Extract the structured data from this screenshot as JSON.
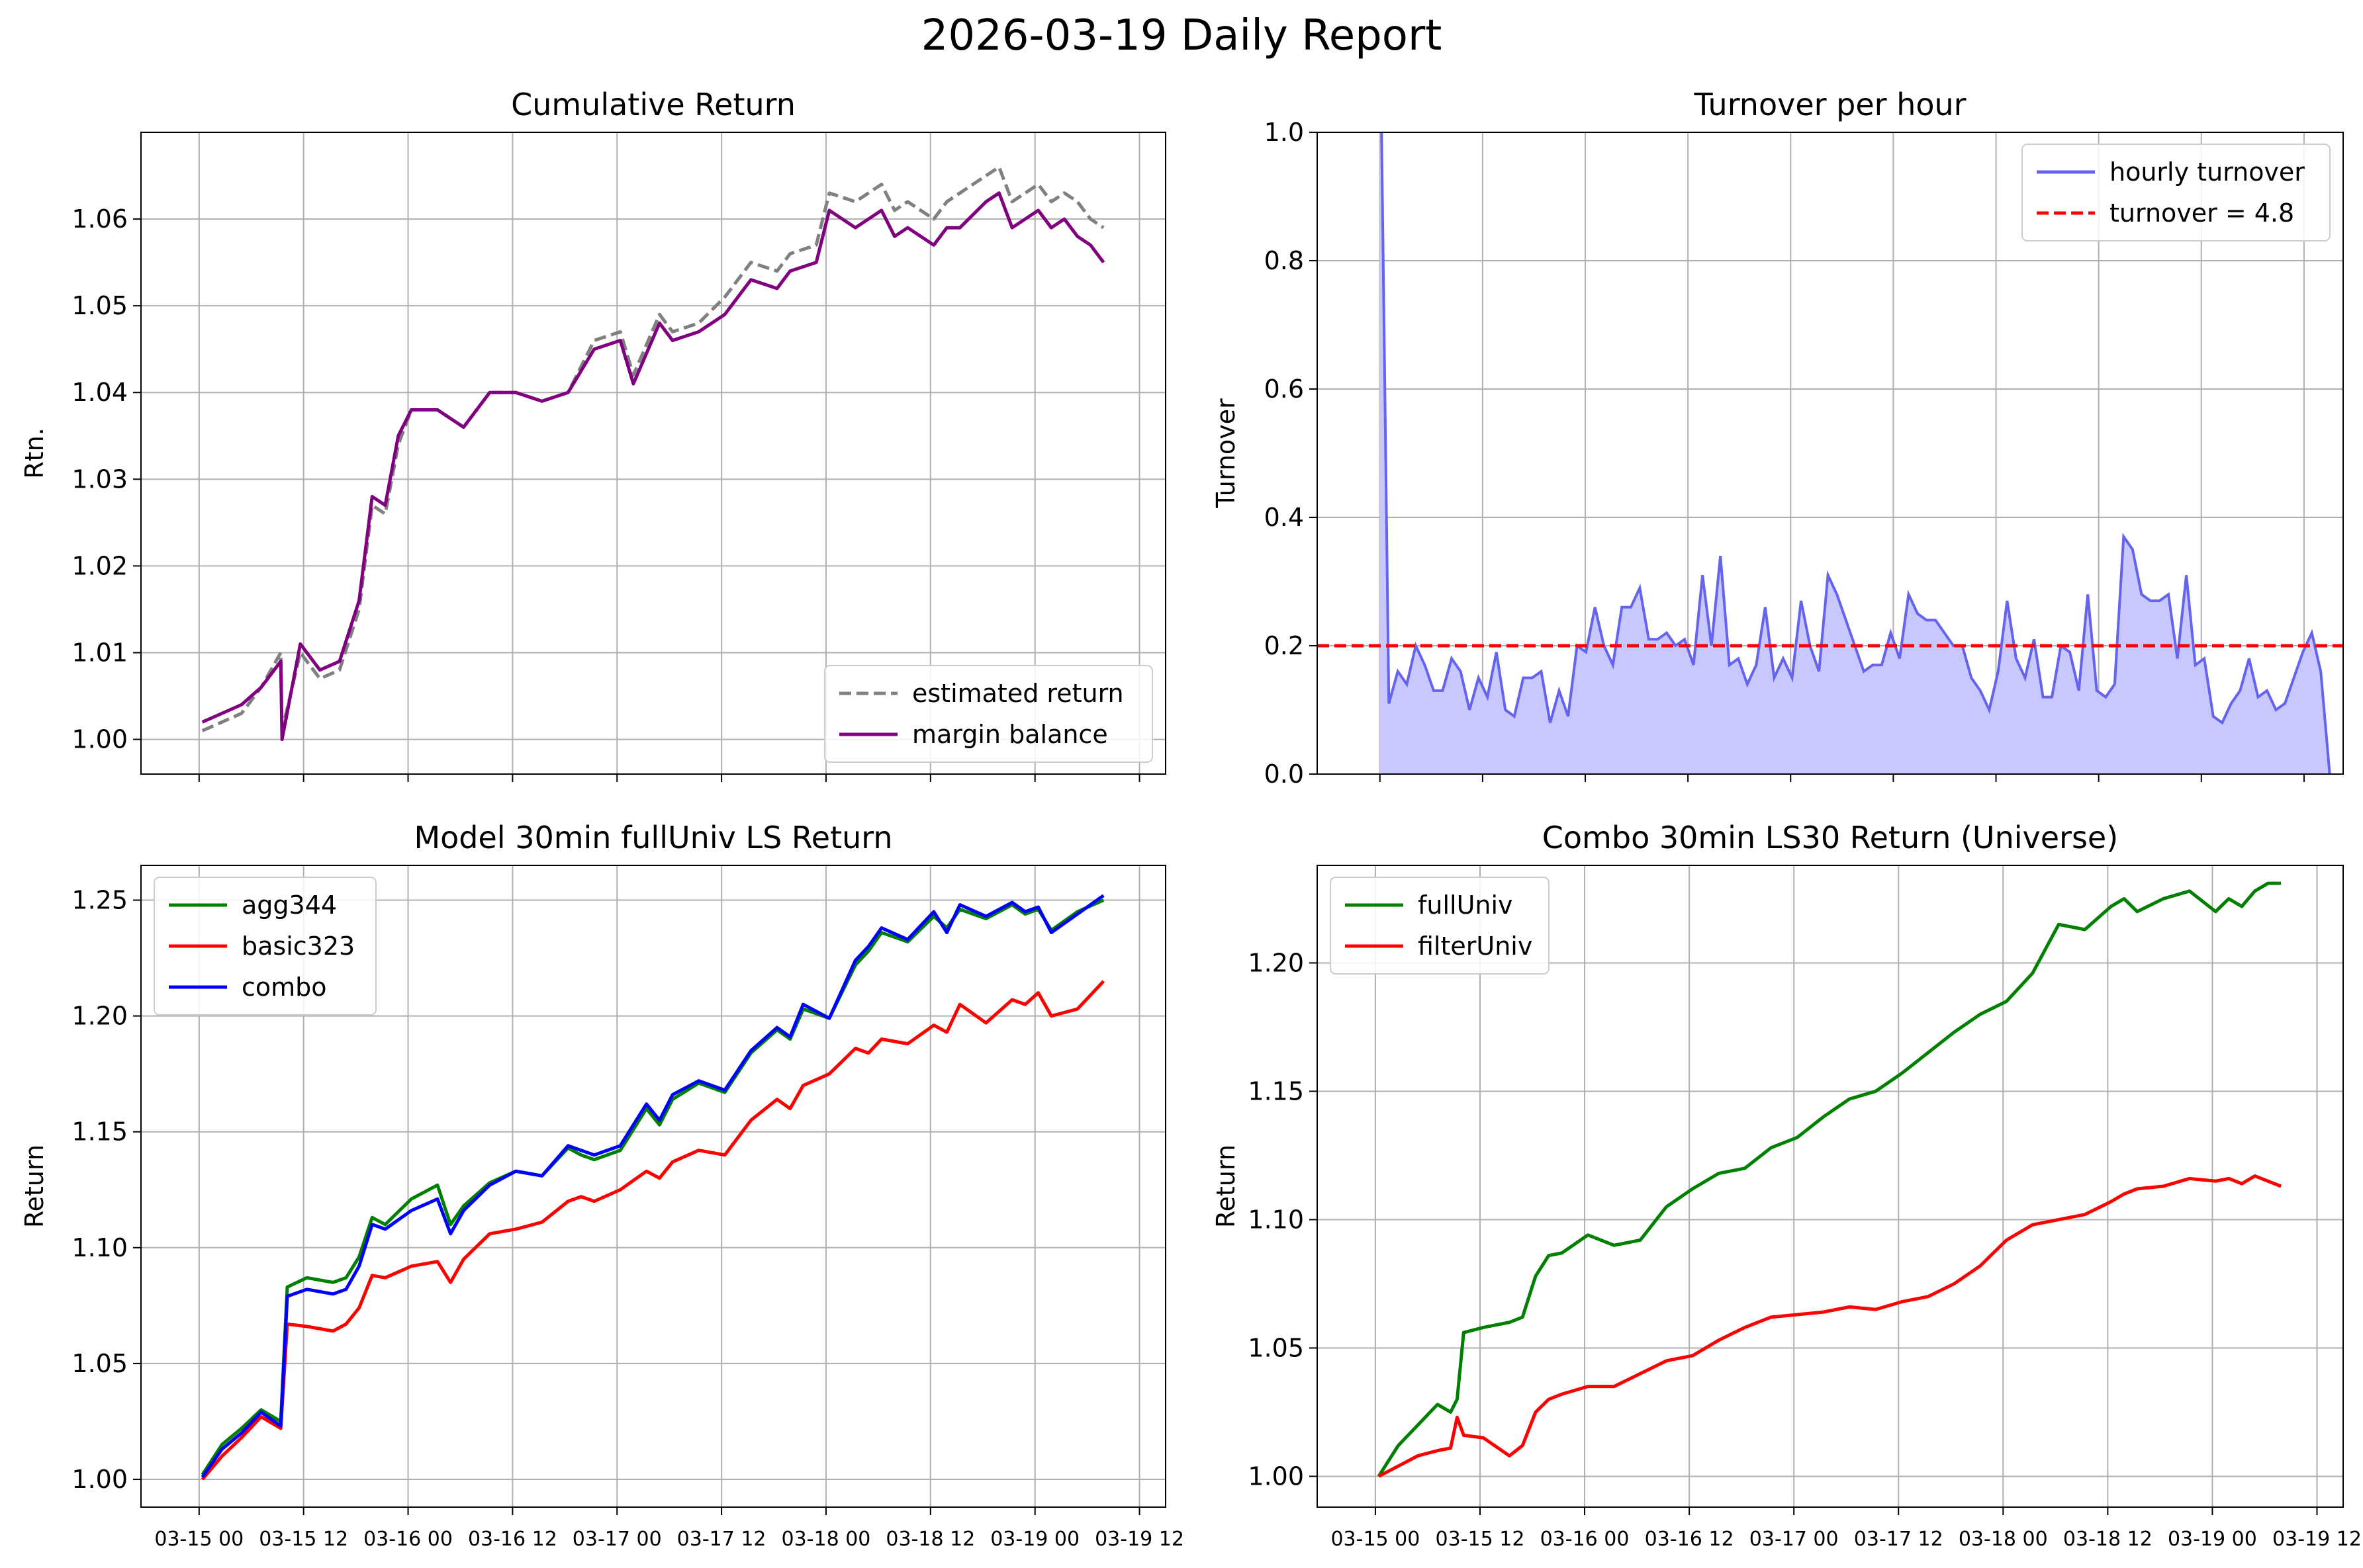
{
  "suptitle": "2026-03-19 Daily Report",
  "colors": {
    "estimated": "#808080",
    "margin": "#800080",
    "turnover_line": "#6464f0",
    "turnover_fill": "#c8c8ff",
    "turnover_ref": "#ff0000",
    "green": "#008000",
    "red": "#ff0000",
    "blue": "#0000ff"
  },
  "chart_data": [
    {
      "type": "line",
      "title": "Cumulative Return",
      "xlabel": "",
      "ylabel": "Rtn.",
      "ylim": [
        0.996,
        1.07
      ],
      "yticks": [
        "1.00",
        "1.01",
        "1.02",
        "1.03",
        "1.04",
        "1.05",
        "1.06"
      ],
      "xticks": [
        "03-15 00",
        "03-15 12",
        "03-16 00",
        "03-16 12",
        "03-17 00",
        "03-17 12",
        "03-18 00",
        "03-18 12",
        "03-19 00",
        "03-19 12"
      ],
      "xtick_labels_visible": false,
      "grid": true,
      "legend": "lower right",
      "x_hours": [
        0,
        3,
        6,
        9,
        12,
        12.2,
        15,
        18,
        21,
        24,
        26,
        28,
        30,
        32,
        36,
        40,
        44,
        48,
        52,
        56,
        60,
        64,
        66,
        70,
        72,
        76,
        80,
        84,
        88,
        90,
        94,
        96,
        100,
        104,
        106,
        108,
        112,
        114,
        116,
        120,
        122,
        124,
        126,
        128,
        130,
        132,
        134,
        136,
        138
      ],
      "series": [
        {
          "name": "estimated return",
          "style": "dashed",
          "values": [
            1.001,
            1.002,
            1.003,
            1.006,
            1.01,
            1.001,
            1.01,
            1.007,
            1.008,
            1.015,
            1.027,
            1.026,
            1.034,
            1.038,
            1.038,
            1.036,
            1.04,
            1.04,
            1.039,
            1.04,
            1.046,
            1.047,
            1.042,
            1.049,
            1.047,
            1.048,
            1.051,
            1.055,
            1.054,
            1.056,
            1.057,
            1.063,
            1.062,
            1.064,
            1.061,
            1.062,
            1.06,
            1.062,
            1.063,
            1.065,
            1.066,
            1.062,
            1.063,
            1.064,
            1.062,
            1.063,
            1.062,
            1.06,
            1.059
          ]
        },
        {
          "name": "margin balance",
          "style": "solid",
          "values": [
            1.002,
            1.003,
            1.004,
            1.006,
            1.009,
            1.0,
            1.011,
            1.008,
            1.009,
            1.016,
            1.028,
            1.027,
            1.035,
            1.038,
            1.038,
            1.036,
            1.04,
            1.04,
            1.039,
            1.04,
            1.045,
            1.046,
            1.041,
            1.048,
            1.046,
            1.047,
            1.049,
            1.053,
            1.052,
            1.054,
            1.055,
            1.061,
            1.059,
            1.061,
            1.058,
            1.059,
            1.057,
            1.059,
            1.059,
            1.062,
            1.063,
            1.059,
            1.06,
            1.061,
            1.059,
            1.06,
            1.058,
            1.057,
            1.055
          ]
        }
      ]
    },
    {
      "type": "area",
      "title": "Turnover per hour",
      "xlabel": "",
      "ylabel": "Turnover",
      "ylim": [
        0,
        1.0
      ],
      "yticks": [
        "0.0",
        "0.2",
        "0.4",
        "0.6",
        "0.8",
        "1.0"
      ],
      "xticks": [
        "03-15 00",
        "03-15 12",
        "03-16 00",
        "03-16 12",
        "03-17 00",
        "03-17 12",
        "03-18 00",
        "03-18 12",
        "03-19 00",
        "03-19 12"
      ],
      "xtick_labels_visible": false,
      "grid": true,
      "legend": "upper right",
      "series": [
        {
          "name": "hourly turnover",
          "x_hours": [
            0,
            1,
            2,
            3,
            4,
            5,
            6,
            7,
            8,
            9,
            10,
            11,
            12,
            13,
            14,
            15,
            16,
            17,
            18,
            19,
            20,
            21,
            22,
            23,
            24,
            25,
            26,
            27,
            28,
            29,
            30,
            31,
            32,
            33,
            34,
            35,
            36,
            37,
            38,
            39,
            40,
            41,
            42,
            43,
            44,
            45,
            46,
            47,
            48,
            49,
            50,
            51,
            52,
            53,
            54,
            55,
            56,
            57,
            58,
            59,
            60,
            61,
            62,
            63,
            64,
            65,
            66,
            67,
            68,
            69,
            70,
            71,
            72,
            73,
            74,
            75,
            76,
            77,
            78,
            79,
            80,
            81,
            82,
            83,
            84,
            85,
            86,
            87,
            88,
            89,
            90,
            91,
            92,
            93,
            94,
            95,
            96,
            97,
            98,
            99,
            100,
            101,
            102,
            103,
            104,
            105,
            106
          ],
          "values": [
            1.2,
            0.11,
            0.16,
            0.14,
            0.2,
            0.17,
            0.13,
            0.13,
            0.18,
            0.16,
            0.1,
            0.15,
            0.12,
            0.19,
            0.1,
            0.09,
            0.15,
            0.15,
            0.16,
            0.08,
            0.13,
            0.09,
            0.2,
            0.19,
            0.26,
            0.2,
            0.17,
            0.26,
            0.26,
            0.29,
            0.21,
            0.21,
            0.22,
            0.2,
            0.21,
            0.17,
            0.31,
            0.2,
            0.34,
            0.17,
            0.18,
            0.14,
            0.17,
            0.26,
            0.15,
            0.18,
            0.15,
            0.27,
            0.2,
            0.16,
            0.31,
            0.28,
            0.24,
            0.2,
            0.16,
            0.17,
            0.17,
            0.22,
            0.18,
            0.28,
            0.25,
            0.24,
            0.24,
            0.22,
            0.2,
            0.2,
            0.15,
            0.13,
            0.1,
            0.16,
            0.27,
            0.18,
            0.15,
            0.21,
            0.12,
            0.12,
            0.2,
            0.19,
            0.13,
            0.28,
            0.13,
            0.12,
            0.14,
            0.37,
            0.35,
            0.28,
            0.27,
            0.27,
            0.28,
            0.18,
            0.31,
            0.17,
            0.18,
            0.09,
            0.08,
            0.11,
            0.13,
            0.18,
            0.12,
            0.13,
            0.1,
            0.11,
            0.15,
            0.19,
            0.22,
            0.16,
            0.0
          ]
        },
        {
          "name": "turnover = 4.8",
          "style": "dashed",
          "values": [
            0.2
          ]
        }
      ]
    },
    {
      "type": "line",
      "title": "Model 30min fullUniv LS Return",
      "xlabel": "",
      "ylabel": "Return",
      "ylim": [
        0.988,
        1.265
      ],
      "yticks": [
        "1.00",
        "1.05",
        "1.10",
        "1.15",
        "1.20",
        "1.25"
      ],
      "xticks": [
        "03-15 00",
        "03-15 12",
        "03-16 00",
        "03-16 12",
        "03-17 00",
        "03-17 12",
        "03-18 00",
        "03-18 12",
        "03-19 00",
        "03-19 12"
      ],
      "grid": true,
      "legend": "upper left",
      "x_hours": [
        0,
        3,
        6,
        9,
        12,
        13,
        16,
        20,
        22,
        24,
        26,
        28,
        32,
        36,
        38,
        40,
        44,
        48,
        52,
        56,
        58,
        60,
        64,
        68,
        70,
        72,
        76,
        80,
        84,
        88,
        90,
        92,
        96,
        100,
        102,
        104,
        108,
        112,
        114,
        116,
        120,
        124,
        126,
        128,
        130,
        134,
        138
      ],
      "series": [
        {
          "name": "agg344",
          "values": [
            1.002,
            1.015,
            1.022,
            1.03,
            1.025,
            1.083,
            1.087,
            1.085,
            1.087,
            1.096,
            1.113,
            1.11,
            1.121,
            1.127,
            1.11,
            1.118,
            1.128,
            1.133,
            1.131,
            1.143,
            1.14,
            1.138,
            1.142,
            1.16,
            1.153,
            1.164,
            1.171,
            1.167,
            1.184,
            1.194,
            1.19,
            1.203,
            1.199,
            1.222,
            1.228,
            1.236,
            1.232,
            1.243,
            1.238,
            1.246,
            1.242,
            1.248,
            1.244,
            1.246,
            1.237,
            1.245,
            1.25
          ]
        },
        {
          "name": "basic323",
          "values": [
            1.0,
            1.01,
            1.018,
            1.027,
            1.022,
            1.067,
            1.066,
            1.064,
            1.067,
            1.074,
            1.088,
            1.087,
            1.092,
            1.094,
            1.085,
            1.095,
            1.106,
            1.108,
            1.111,
            1.12,
            1.122,
            1.12,
            1.125,
            1.133,
            1.13,
            1.137,
            1.142,
            1.14,
            1.155,
            1.164,
            1.16,
            1.17,
            1.175,
            1.186,
            1.184,
            1.19,
            1.188,
            1.196,
            1.193,
            1.205,
            1.197,
            1.207,
            1.205,
            1.21,
            1.2,
            1.203,
            1.215
          ]
        },
        {
          "name": "combo",
          "values": [
            1.001,
            1.013,
            1.02,
            1.029,
            1.023,
            1.079,
            1.082,
            1.08,
            1.082,
            1.092,
            1.11,
            1.108,
            1.116,
            1.121,
            1.106,
            1.116,
            1.127,
            1.133,
            1.131,
            1.144,
            1.142,
            1.14,
            1.144,
            1.162,
            1.155,
            1.166,
            1.172,
            1.168,
            1.185,
            1.195,
            1.191,
            1.205,
            1.199,
            1.224,
            1.23,
            1.238,
            1.233,
            1.245,
            1.236,
            1.248,
            1.243,
            1.249,
            1.245,
            1.247,
            1.236,
            1.244,
            1.252
          ]
        }
      ]
    },
    {
      "type": "line",
      "title": "Combo 30min LS30 Return (Universe)",
      "xlabel": "",
      "ylabel": "Return",
      "ylim": [
        0.988,
        1.238
      ],
      "yticks": [
        "1.00",
        "1.05",
        "1.10",
        "1.15",
        "1.20"
      ],
      "xticks": [
        "03-15 00",
        "03-15 12",
        "03-16 00",
        "03-16 12",
        "03-17 00",
        "03-17 12",
        "03-18 00",
        "03-18 12",
        "03-19 00",
        "03-19 12"
      ],
      "grid": true,
      "legend": "upper left",
      "x_hours": [
        0,
        3,
        6,
        9,
        11,
        12,
        13,
        16,
        20,
        22,
        24,
        26,
        28,
        32,
        36,
        40,
        44,
        48,
        52,
        56,
        60,
        64,
        68,
        72,
        76,
        80,
        84,
        88,
        92,
        96,
        100,
        104,
        108,
        112,
        114,
        116,
        120,
        124,
        128,
        130,
        132,
        134,
        136,
        138
      ],
      "series": [
        {
          "name": "fullUniv",
          "values": [
            1.0,
            1.012,
            1.02,
            1.028,
            1.025,
            1.03,
            1.056,
            1.058,
            1.06,
            1.062,
            1.078,
            1.086,
            1.087,
            1.094,
            1.09,
            1.092,
            1.105,
            1.112,
            1.118,
            1.12,
            1.128,
            1.132,
            1.14,
            1.147,
            1.15,
            1.157,
            1.165,
            1.173,
            1.18,
            1.185,
            1.196,
            1.215,
            1.213,
            1.222,
            1.225,
            1.22,
            1.225,
            1.228,
            1.22,
            1.225,
            1.222,
            1.228,
            1.231,
            1.231
          ]
        },
        {
          "name": "filterUniv",
          "values": [
            1.0,
            1.004,
            1.008,
            1.01,
            1.011,
            1.023,
            1.016,
            1.015,
            1.008,
            1.012,
            1.025,
            1.03,
            1.032,
            1.035,
            1.035,
            1.04,
            1.045,
            1.047,
            1.053,
            1.058,
            1.062,
            1.063,
            1.064,
            1.066,
            1.065,
            1.068,
            1.07,
            1.075,
            1.082,
            1.092,
            1.098,
            1.1,
            1.102,
            1.107,
            1.11,
            1.112,
            1.113,
            1.116,
            1.115,
            1.116,
            1.114,
            1.117,
            1.115,
            1.113
          ]
        }
      ]
    }
  ]
}
